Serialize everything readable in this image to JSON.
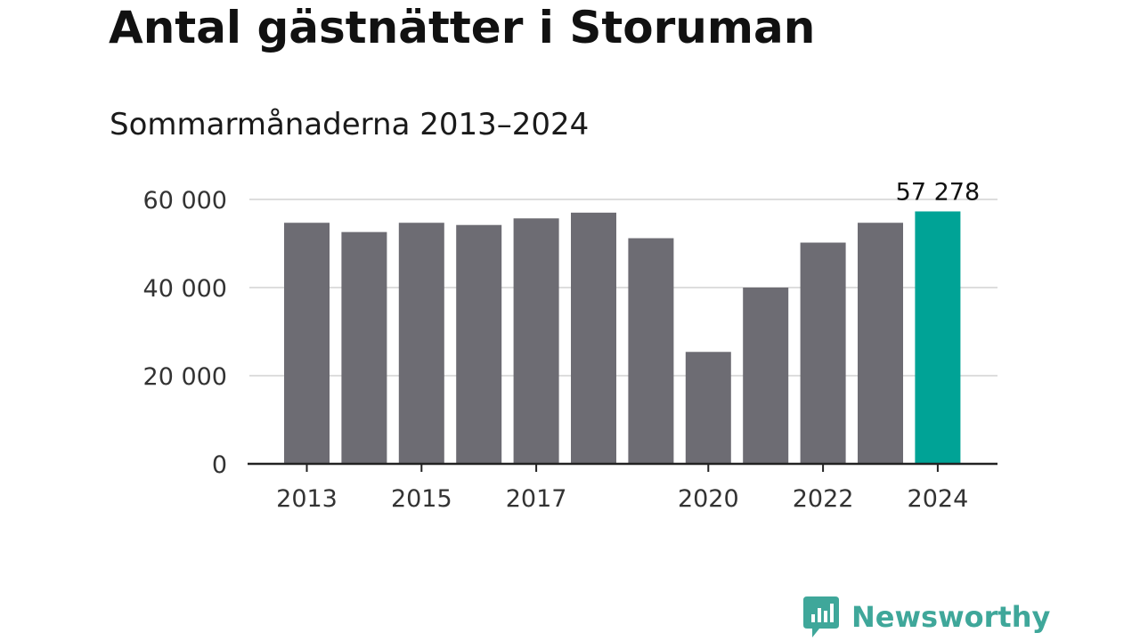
{
  "title": "Antal gästnätter i Storuman",
  "subtitle": "Sommarmånaderna 2013–2024",
  "brand": {
    "name": "Newsworthy",
    "icon": "newsworthy-logo-icon",
    "color": "#3fa79a"
  },
  "colors": {
    "bar": "#6d6c73",
    "highlight": "#00a396",
    "grid": "#dddddd",
    "axis": "#222222"
  },
  "chart_data": {
    "type": "bar",
    "title": "Antal gästnätter i Storuman",
    "subtitle": "Sommarmånaderna 2013–2024",
    "xlabel": "",
    "ylabel": "",
    "categories": [
      2013,
      2014,
      2015,
      2016,
      2017,
      2018,
      2019,
      2020,
      2021,
      2022,
      2023,
      2024
    ],
    "values": [
      54700,
      52600,
      54700,
      54200,
      55700,
      57000,
      51200,
      25400,
      40000,
      50200,
      54700,
      57278
    ],
    "highlight_index": 11,
    "ylim": [
      0,
      60000
    ],
    "yticks": [
      {
        "value": 0,
        "label": "0"
      },
      {
        "value": 20000,
        "label": "20 000"
      },
      {
        "value": 40000,
        "label": "40 000"
      },
      {
        "value": 60000,
        "label": "60 000"
      }
    ],
    "xticks": [
      {
        "year": 2013,
        "label": "2013"
      },
      {
        "year": 2015,
        "label": "2015"
      },
      {
        "year": 2017,
        "label": "2017"
      },
      {
        "year": 2020,
        "label": "2020"
      },
      {
        "year": 2022,
        "label": "2022"
      },
      {
        "year": 2024,
        "label": "2024"
      }
    ],
    "annotation": {
      "index": 11,
      "label": "57 278"
    },
    "grid": true
  }
}
